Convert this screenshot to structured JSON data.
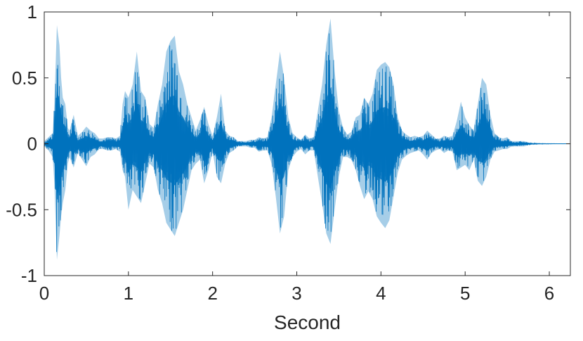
{
  "chart_data": {
    "type": "line",
    "title": "",
    "xlabel": "Second",
    "ylabel": "",
    "xlim": [
      0,
      6.25
    ],
    "ylim": [
      -1,
      1
    ],
    "x_ticks": [
      0,
      1,
      2,
      3,
      4,
      5,
      6
    ],
    "y_ticks": [
      -1,
      -0.5,
      0,
      0.5,
      1
    ],
    "x_tick_labels": [
      "0",
      "1",
      "2",
      "3",
      "4",
      "5",
      "6"
    ],
    "y_tick_labels": [
      "-1",
      "-0.5",
      "0",
      "0.5",
      "1"
    ],
    "grid": false,
    "series": [
      {
        "color": "#0072BD",
        "x": [
          0,
          0.05,
          0.1,
          0.12,
          0.15,
          0.18,
          0.2,
          0.22,
          0.25,
          0.28,
          0.3,
          0.35,
          0.4,
          0.45,
          0.5,
          0.55,
          0.6,
          0.65,
          0.7,
          0.75,
          0.8,
          0.85,
          0.9,
          0.93,
          0.96,
          1.0,
          1.05,
          1.1,
          1.15,
          1.2,
          1.25,
          1.3,
          1.35,
          1.4,
          1.45,
          1.5,
          1.55,
          1.6,
          1.65,
          1.7,
          1.75,
          1.8,
          1.85,
          1.9,
          1.95,
          2.0,
          2.05,
          2.1,
          2.15,
          2.2,
          2.25,
          2.3,
          2.35,
          2.4,
          2.45,
          2.5,
          2.55,
          2.6,
          2.65,
          2.7,
          2.75,
          2.8,
          2.85,
          2.9,
          2.95,
          3.0,
          3.05,
          3.1,
          3.15,
          3.2,
          3.25,
          3.3,
          3.35,
          3.4,
          3.45,
          3.5,
          3.55,
          3.6,
          3.65,
          3.7,
          3.75,
          3.8,
          3.85,
          3.9,
          3.95,
          4.0,
          4.05,
          4.1,
          4.15,
          4.2,
          4.25,
          4.3,
          4.35,
          4.4,
          4.45,
          4.5,
          4.55,
          4.6,
          4.65,
          4.7,
          4.75,
          4.8,
          4.85,
          4.9,
          4.95,
          5.0,
          5.05,
          5.1,
          5.15,
          5.2,
          5.25,
          5.3,
          5.35,
          5.4,
          5.45,
          5.5,
          5.55,
          5.6,
          5.65,
          5.7,
          5.75,
          5.8,
          5.85,
          5.9,
          6.0,
          6.1,
          6.25
        ],
        "upper": [
          0.02,
          0.05,
          0.08,
          0.3,
          0.9,
          0.75,
          0.5,
          0.35,
          0.3,
          0.12,
          0.1,
          0.22,
          0.06,
          0.09,
          0.13,
          0.1,
          0.08,
          0.04,
          0.04,
          0.05,
          0.05,
          0.04,
          0.06,
          0.3,
          0.4,
          0.35,
          0.45,
          0.7,
          0.4,
          0.35,
          0.15,
          0.12,
          0.3,
          0.45,
          0.7,
          0.78,
          0.82,
          0.55,
          0.45,
          0.3,
          0.2,
          0.1,
          0.18,
          0.28,
          0.15,
          0.06,
          0.2,
          0.38,
          0.1,
          0.06,
          0.05,
          0.02,
          0.02,
          0.02,
          0.03,
          0.03,
          0.05,
          0.04,
          0.05,
          0.2,
          0.45,
          0.7,
          0.5,
          0.2,
          0.08,
          0.05,
          0.03,
          0.07,
          0.04,
          0.05,
          0.25,
          0.45,
          0.75,
          0.95,
          0.55,
          0.25,
          0.12,
          0.07,
          0.09,
          0.2,
          0.22,
          0.35,
          0.3,
          0.38,
          0.56,
          0.6,
          0.62,
          0.58,
          0.45,
          0.2,
          0.1,
          0.07,
          0.05,
          0.06,
          0.05,
          0.06,
          0.1,
          0.07,
          0.04,
          0.04,
          0.06,
          0.05,
          0.06,
          0.17,
          0.32,
          0.2,
          0.14,
          0.1,
          0.3,
          0.5,
          0.45,
          0.22,
          0.08,
          0.05,
          0.04,
          0.05,
          0.02,
          0.02,
          0.02,
          0.02,
          0.01,
          0.005,
          0.004,
          0.003,
          0.002,
          0.001,
          0.001
        ],
        "lower": [
          -0.02,
          -0.05,
          -0.1,
          -0.3,
          -0.88,
          -0.7,
          -0.55,
          -0.45,
          -0.35,
          -0.15,
          -0.1,
          -0.18,
          -0.07,
          -0.12,
          -0.17,
          -0.1,
          -0.08,
          -0.04,
          -0.04,
          -0.05,
          -0.05,
          -0.04,
          -0.06,
          -0.2,
          -0.25,
          -0.5,
          -0.35,
          -0.4,
          -0.45,
          -0.3,
          -0.15,
          -0.18,
          -0.35,
          -0.45,
          -0.6,
          -0.65,
          -0.7,
          -0.6,
          -0.5,
          -0.35,
          -0.2,
          -0.15,
          -0.12,
          -0.3,
          -0.2,
          -0.06,
          -0.25,
          -0.3,
          -0.15,
          -0.07,
          -0.05,
          -0.02,
          -0.02,
          -0.02,
          -0.03,
          -0.03,
          -0.06,
          -0.05,
          -0.05,
          -0.15,
          -0.4,
          -0.68,
          -0.55,
          -0.2,
          -0.1,
          -0.06,
          -0.04,
          -0.08,
          -0.05,
          -0.05,
          -0.25,
          -0.45,
          -0.68,
          -0.76,
          -0.5,
          -0.25,
          -0.1,
          -0.1,
          -0.12,
          -0.2,
          -0.32,
          -0.42,
          -0.36,
          -0.42,
          -0.55,
          -0.6,
          -0.64,
          -0.58,
          -0.4,
          -0.22,
          -0.12,
          -0.09,
          -0.07,
          -0.06,
          -0.05,
          -0.08,
          -0.12,
          -0.07,
          -0.05,
          -0.04,
          -0.07,
          -0.05,
          -0.06,
          -0.2,
          -0.18,
          -0.16,
          -0.2,
          -0.12,
          -0.28,
          -0.32,
          -0.25,
          -0.12,
          -0.06,
          -0.05,
          -0.04,
          -0.04,
          -0.02,
          -0.02,
          -0.02,
          -0.02,
          -0.01,
          -0.005,
          -0.004,
          -0.003,
          -0.002,
          -0.001,
          -0.001
        ]
      }
    ]
  }
}
